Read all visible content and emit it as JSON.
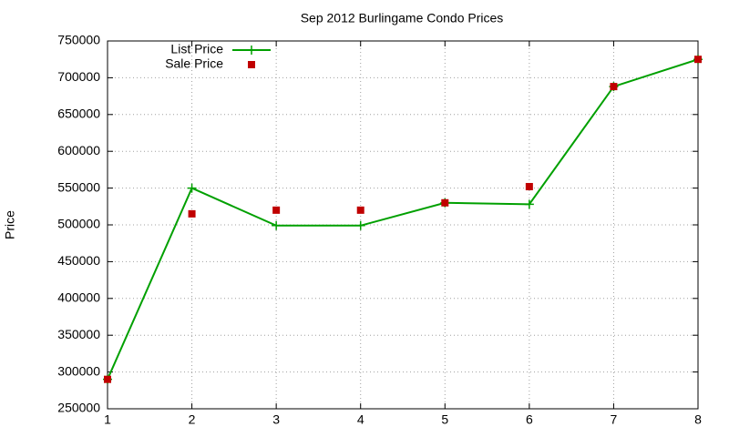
{
  "chart_data": {
    "type": "line",
    "title": "Sep 2012 Burlingame Condo Prices",
    "y_label": "Price",
    "x": [
      1,
      2,
      3,
      4,
      5,
      6,
      7,
      8
    ],
    "series": [
      {
        "name": "List Price",
        "color": "#00a000",
        "style": "linespoints",
        "values": [
          290000,
          550000,
          499000,
          499000,
          530000,
          528000,
          688000,
          725000
        ]
      },
      {
        "name": "Sale Price",
        "color": "#c00000",
        "style": "points",
        "values": [
          290000,
          515000,
          520000,
          520000,
          530000,
          552000,
          688000,
          725000
        ]
      }
    ],
    "xlim": [
      1,
      8
    ],
    "xticks": [
      1,
      2,
      3,
      4,
      5,
      6,
      7,
      8
    ],
    "ylim": [
      250000,
      750000
    ],
    "yticks": [
      250000,
      300000,
      350000,
      400000,
      450000,
      500000,
      550000,
      600000,
      650000,
      700000,
      750000
    ],
    "grid": true,
    "legend": "top-left"
  }
}
